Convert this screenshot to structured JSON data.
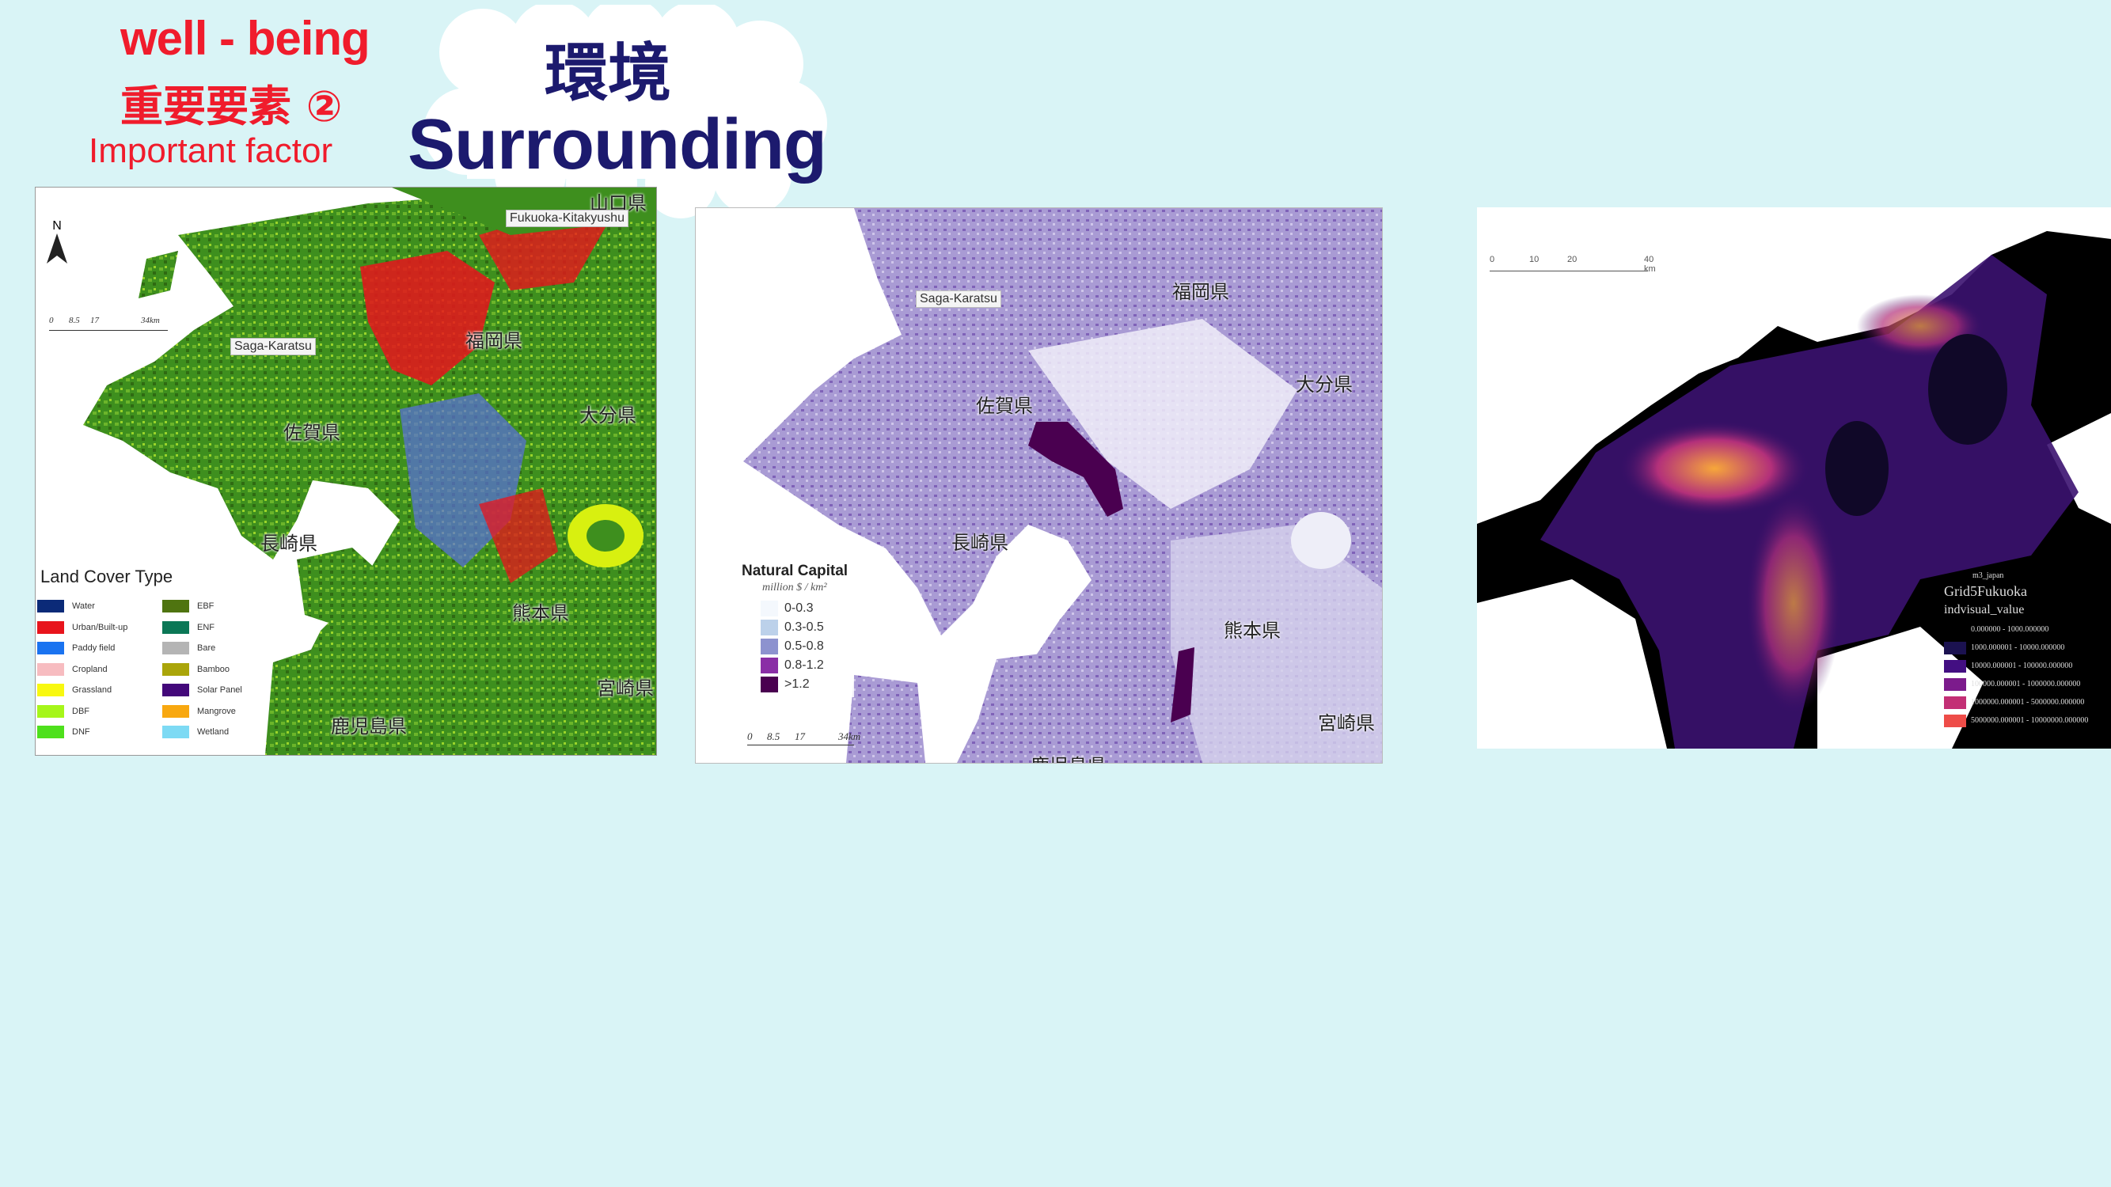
{
  "header": {
    "line1": "well - being",
    "line2": "重要要素 ②",
    "line3": "Important factor",
    "title_jp": "環境",
    "title_en": "Surrounding"
  },
  "map_land_cover": {
    "labels": {
      "yamaguchi": "山口県",
      "fukuoka_kitakyushu": "Fukuoka-Kitakyushu",
      "saga_karatsu": "Saga-Karatsu",
      "fukuoka": "福岡県",
      "oita": "大分県",
      "saga": "佐賀県",
      "nagasaki": "長崎県",
      "kumamoto": "熊本県",
      "miyazaki": "宮崎県",
      "kagoshima": "鹿児島県"
    },
    "north": "N",
    "scale": [
      "0",
      "8.5",
      "17",
      "34km"
    ],
    "legend": {
      "title": "Land Cover Type",
      "items": [
        {
          "label": "Water",
          "color": "#0b2a78"
        },
        {
          "label": "Urban/Built-up",
          "color": "#e8141c"
        },
        {
          "label": "Paddy field",
          "color": "#1a73f0"
        },
        {
          "label": "Cropland",
          "color": "#f7bcc0"
        },
        {
          "label": "Grassland",
          "color": "#f8f810"
        },
        {
          "label": "DBF",
          "color": "#a6f61a"
        },
        {
          "label": "DNF",
          "color": "#4ee01c"
        },
        {
          "label": "EBF",
          "color": "#4f7410"
        },
        {
          "label": "ENF",
          "color": "#0b7756"
        },
        {
          "label": "Bare",
          "color": "#b4b4b4"
        },
        {
          "label": "Bamboo",
          "color": "#aaa50a"
        },
        {
          "label": "Solar Panel",
          "color": "#43087a"
        },
        {
          "label": "Mangrove",
          "color": "#f8a810"
        },
        {
          "label": "Wetland",
          "color": "#7ddaf4"
        }
      ]
    }
  },
  "map_natural_capital": {
    "labels": {
      "saga_karatsu": "Saga-Karatsu",
      "fukuoka": "福岡県",
      "oita": "大分県",
      "saga": "佐賀県",
      "nagasaki": "長崎県",
      "kumamoto": "熊本県",
      "miyazaki": "宮崎県",
      "kagoshima": "鹿児島県"
    },
    "scale": [
      "0",
      "8.5",
      "17",
      "34km"
    ],
    "legend": {
      "title": "Natural Capital",
      "unit": "million $ / km²",
      "items": [
        {
          "label": "0-0.3",
          "color": "#f4f8fd"
        },
        {
          "label": "0.3-0.5",
          "color": "#bcd1ea"
        },
        {
          "label": "0.5-0.8",
          "color": "#8d92cf"
        },
        {
          "label": "0.8-1.2",
          "color": "#8a2ea6"
        },
        {
          "label": ">1.2",
          "color": "#4a0050"
        }
      ]
    }
  },
  "map_population": {
    "scale": [
      "0",
      "10",
      "20",
      "40 km"
    ],
    "legend": {
      "group": "m3_japan",
      "layer": "Grid5Fukuoka",
      "field": "indvisual_value",
      "items": [
        {
          "label": "0.000000 - 1000.000000",
          "color": "#000000"
        },
        {
          "label": "1000.000001 - 10000.000000",
          "color": "#1b1250"
        },
        {
          "label": "10000.000001 - 100000.000000",
          "color": "#430f82"
        },
        {
          "label": "100000.000001 - 1000000.000000",
          "color": "#7c1b8c"
        },
        {
          "label": "1000000.000001 - 5000000.000000",
          "color": "#c32f75"
        },
        {
          "label": "5000000.000001 - 10000000.000000",
          "color": "#ee4c48"
        }
      ]
    }
  }
}
